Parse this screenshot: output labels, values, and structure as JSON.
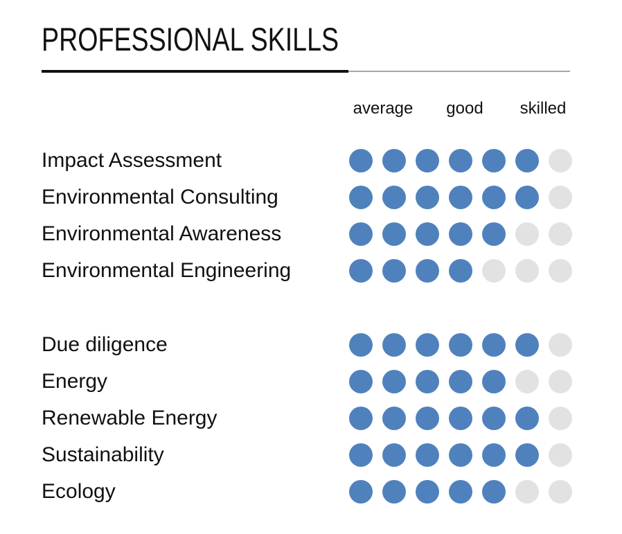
{
  "title": "PROFESSIONAL SKILLS",
  "scale": {
    "labels": [
      "average",
      "good",
      "skilled"
    ],
    "max_dots": 7
  },
  "colors": {
    "filled_dot": "#4f81bd",
    "empty_dot": "#e2e2e2",
    "divider_dark": "#111111",
    "divider_light": "#a6a6a6",
    "text": "#111111"
  },
  "groups": [
    {
      "skills": [
        {
          "name": "Impact Assessment",
          "rating": 6
        },
        {
          "name": "Environmental Consulting",
          "rating": 6
        },
        {
          "name": "Environmental Awareness",
          "rating": 5
        },
        {
          "name": "Environmental Engineering",
          "rating": 4
        }
      ]
    },
    {
      "skills": [
        {
          "name": "Due diligence",
          "rating": 6
        },
        {
          "name": "Energy",
          "rating": 5
        },
        {
          "name": "Renewable Energy",
          "rating": 6
        },
        {
          "name": "Sustainability",
          "rating": 6
        },
        {
          "name": "Ecology",
          "rating": 5
        }
      ]
    }
  ],
  "chart_data": {
    "type": "bar",
    "variant": "dot-rating",
    "title": "PROFESSIONAL SKILLS",
    "scale_labels": [
      "average",
      "good",
      "skilled"
    ],
    "max": 7,
    "categories": [
      "Impact Assessment",
      "Environmental Consulting",
      "Environmental Awareness",
      "Environmental Engineering",
      "Due diligence",
      "Energy",
      "Renewable Energy",
      "Sustainability",
      "Ecology"
    ],
    "values": [
      6,
      6,
      5,
      4,
      6,
      5,
      6,
      6,
      5
    ],
    "group_breaks_after": [
      "Environmental Engineering"
    ],
    "legend_position": "top",
    "grid": false
  }
}
